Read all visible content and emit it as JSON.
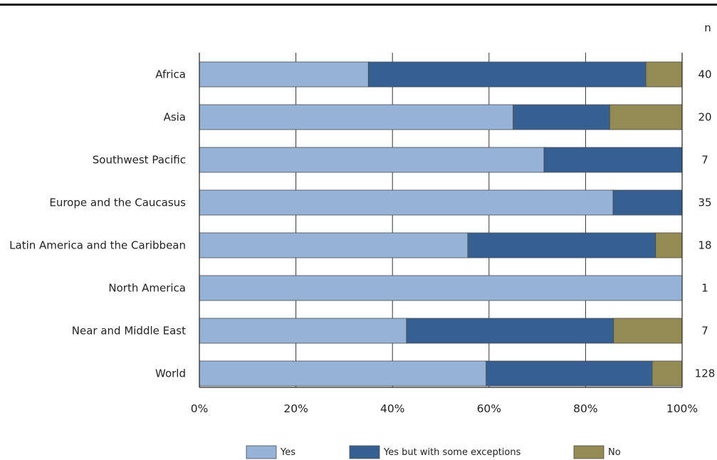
{
  "chart_data": {
    "type": "bar",
    "orientation": "horizontal",
    "stacked": true,
    "categories": [
      "Africa",
      "Asia",
      "Southwest Pacific",
      "Europe and the Caucasus",
      "Latin America and the Caribbean",
      "North America",
      "Near and Middle East",
      "World"
    ],
    "series": [
      {
        "name": "Yes",
        "color": "#95b3d7",
        "values": [
          35,
          65,
          71.4,
          85.7,
          55.6,
          100,
          42.9,
          59.4
        ]
      },
      {
        "name": "Yes but with some exceptions",
        "color": "#376092",
        "values": [
          57.5,
          20,
          28.6,
          14.3,
          38.9,
          0,
          42.9,
          34.4
        ]
      },
      {
        "name": "No",
        "color": "#948a54",
        "values": [
          7.5,
          15,
          0,
          0,
          5.5,
          0,
          14.2,
          6.2
        ]
      }
    ],
    "n_header": "n",
    "n_values": [
      "40",
      "20",
      "7",
      "35",
      "18",
      "1",
      "7",
      "128"
    ],
    "xlim": [
      0,
      100
    ],
    "x_ticks": [
      "0%",
      "20%",
      "40%",
      "60%",
      "80%",
      "100%"
    ],
    "grid": "vertical lines at ticks",
    "legend_placement": "bottom",
    "title": "",
    "xlabel": "",
    "ylabel": ""
  }
}
